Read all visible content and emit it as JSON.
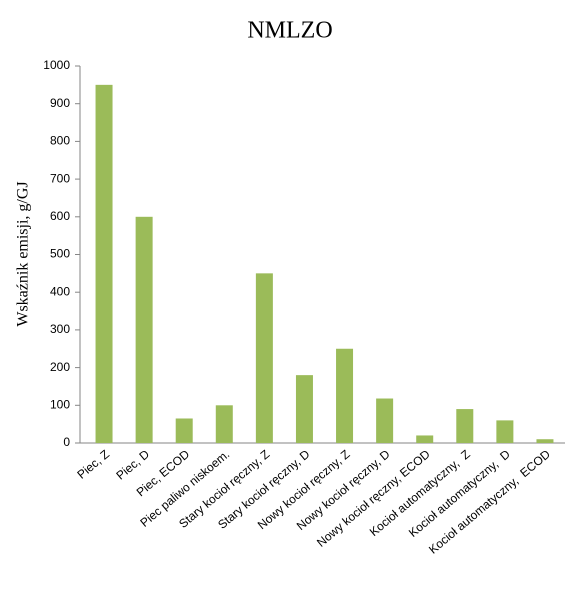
{
  "chart_data": {
    "type": "bar",
    "title": "NMLZO",
    "y_label": "Wskaźnik emisji, g/GJ",
    "categories": [
      "Piec, Z",
      "Piec, D",
      "Piec, ECOD",
      "Piec paliwo niskoem.",
      "Stary kocioł ręczny, Z",
      "Stary kocioł ręczny, D",
      "Nowy kocioł ręczny, Z",
      "Nowy kocioł ręczny, D",
      "Nowy kocioł ręczny, ECOD",
      "Kocioł automatyczny,  Z",
      "Kocioł automatyczny,  D",
      "Kocioł automatyczny,  ECOD"
    ],
    "values": [
      950,
      600,
      65,
      100,
      450,
      180,
      250,
      118,
      20,
      90,
      60,
      10
    ],
    "color": "#9bbb59",
    "ylim": [
      0,
      1000
    ],
    "yticks": [
      0,
      100,
      200,
      300,
      400,
      500,
      600,
      700,
      800,
      900,
      1000
    ],
    "grid": false
  }
}
